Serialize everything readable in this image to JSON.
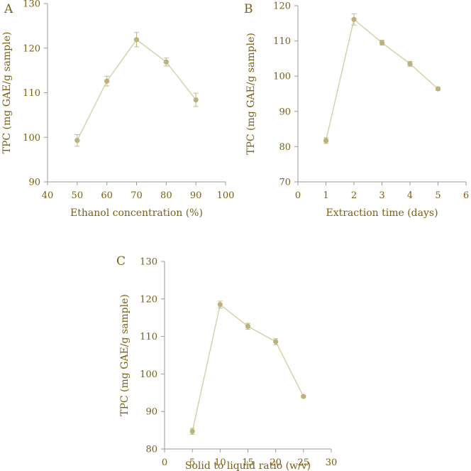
{
  "colors": {
    "marker": "#bcb27c",
    "line": "#d4cfa6",
    "error": "#c2b98a",
    "text": "#7a5e12",
    "axis": "#9a9a9a"
  },
  "chart_data": [
    {
      "panel": "A",
      "type": "line",
      "xlabel": "Ethanol concentration (%)",
      "ylabel": "TPC (mg GAE/g sample)",
      "xlim": [
        40,
        100
      ],
      "ylim": [
        90,
        130
      ],
      "xticks": [
        40,
        50,
        60,
        70,
        80,
        90,
        100
      ],
      "yticks": [
        90,
        100,
        110,
        120,
        130
      ],
      "x": [
        50,
        60,
        70,
        80,
        90
      ],
      "y": [
        99.3,
        112.6,
        121.9,
        116.9,
        108.4
      ],
      "err": [
        1.3,
        1.1,
        1.6,
        0.9,
        1.5
      ]
    },
    {
      "panel": "B",
      "type": "line",
      "xlabel": "Extraction time (days)",
      "ylabel": "TPC (mg GAE/g sample)",
      "xlim": [
        0,
        6
      ],
      "ylim": [
        70,
        120
      ],
      "xticks": [
        0,
        1,
        2,
        3,
        4,
        5,
        6
      ],
      "yticks": [
        70,
        80,
        90,
        100,
        110,
        120
      ],
      "x": [
        1,
        2,
        3,
        4,
        5
      ],
      "y": [
        81.7,
        116.1,
        109.5,
        103.5,
        96.4
      ],
      "err": [
        0.8,
        1.6,
        0.7,
        0.7,
        0.4
      ]
    },
    {
      "panel": "C",
      "type": "line",
      "xlabel": "Solid to liquid ratio (w/v)",
      "ylabel": "TPC (mg GAE/g sample)",
      "xlim": [
        0,
        30
      ],
      "ylim": [
        80,
        130
      ],
      "xticks": [
        0,
        5,
        10,
        15,
        20,
        25,
        30
      ],
      "yticks": [
        80,
        90,
        100,
        110,
        120,
        130
      ],
      "x": [
        5,
        10,
        15,
        20,
        25
      ],
      "y": [
        84.7,
        118.5,
        112.7,
        108.6,
        94.0
      ],
      "err": [
        0.8,
        0.9,
        0.8,
        0.8,
        0.3
      ]
    }
  ]
}
